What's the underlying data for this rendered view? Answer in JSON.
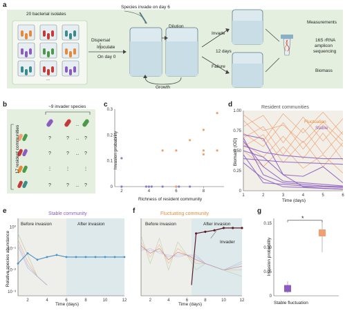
{
  "panel_a": {
    "letter": "a",
    "isolates_label": "20 bacterial isolates",
    "ellipsis": "...",
    "species_invade": "Species invade on day 6",
    "dispersal": "Dispersal",
    "dilution": "Dilution",
    "inoculate": "Inoculate",
    "on_day0": "On day 0",
    "growth": "Growth",
    "invade": "Invade",
    "failure": "Failure",
    "twelve_days": "12 days",
    "measurements": "Measurements",
    "rrna": "16S rRNA",
    "amplicon": "amplicon",
    "sequencing": "sequencing",
    "biomass": "Biomass",
    "colors": {
      "bg": "#e5efe0",
      "orange": "#e58a3a",
      "red": "#c43a36",
      "teal": "#3a8c8c",
      "purple": "#8a5cc0",
      "green": "#4a9a4a"
    }
  },
  "panel_b": {
    "letter": "b",
    "invader_label": "~9 invader species",
    "resident_label": "17 resident communities",
    "q": "?",
    "dots": "...",
    "vdots": "⋮"
  },
  "panel_c": {
    "letter": "c",
    "chart_data": {
      "type": "scatter",
      "xlabel": "Richness of resident community",
      "ylabel": "Invasion probability",
      "xlim": [
        1.5,
        9.5
      ],
      "ylim": [
        0,
        0.3
      ],
      "xticks": [
        "2",
        "4",
        "6",
        "8"
      ],
      "yticks": [
        "0",
        "0.1",
        "0.2",
        "0.3"
      ],
      "series": [
        {
          "color": "#8a7cc8",
          "points": [
            [
              2,
              0.11
            ],
            [
              2,
              0
            ],
            [
              3.8,
              0
            ],
            [
              4,
              0
            ],
            [
              4.2,
              0
            ],
            [
              5,
              0
            ],
            [
              6,
              0
            ],
            [
              6.2,
              0
            ],
            [
              7,
              0
            ]
          ]
        },
        {
          "color": "#f0a070",
          "points": [
            [
              5,
              0.14
            ],
            [
              6,
              0.14
            ],
            [
              6,
              0
            ],
            [
              7,
              0.18
            ],
            [
              8,
              0.14
            ],
            [
              8,
              0.22
            ],
            [
              8,
              0.125
            ],
            [
              9,
              0.285
            ],
            [
              9,
              0.14
            ]
          ]
        }
      ]
    }
  },
  "panel_d": {
    "letter": "d",
    "title": "Resident communities",
    "legend_fluct": "Fluctuation",
    "legend_stable": "Stable",
    "chart_data": {
      "type": "line",
      "xlabel": "Time (days)",
      "ylabel": "Biomass (OD)",
      "xlim": [
        1,
        6
      ],
      "ylim": [
        0,
        1.0
      ],
      "xticks": [
        "1",
        "2",
        "3",
        "4",
        "5",
        "6"
      ],
      "yticks": [
        "0",
        "0.25",
        "0.50",
        "0.75",
        "1.00"
      ],
      "fluct_color": "#f0a070",
      "stable_color": "#8a5cc0",
      "fluctuating": [
        [
          0.88,
          0.62,
          0.96,
          0.72,
          0.98,
          0.7
        ],
        [
          0.8,
          0.94,
          0.6,
          0.92,
          0.62,
          0.9
        ],
        [
          0.72,
          0.55,
          0.85,
          0.52,
          0.82,
          0.55
        ],
        [
          0.66,
          0.8,
          0.45,
          0.78,
          0.46,
          0.74
        ],
        [
          0.6,
          0.42,
          0.68,
          0.4,
          0.72,
          0.38
        ],
        [
          0.55,
          0.7,
          0.35,
          0.62,
          0.3,
          0.6
        ],
        [
          0.5,
          0.3,
          0.55,
          0.28,
          0.45,
          0.22
        ],
        [
          0.95,
          0.75,
          0.82,
          0.6,
          0.86,
          0.62
        ]
      ],
      "stable": [
        [
          0.66,
          0.2,
          0.1,
          0.08,
          0.06,
          0.05
        ],
        [
          0.62,
          0.3,
          0.12,
          0.1,
          0.08,
          0.06
        ],
        [
          0.56,
          0.48,
          0.44,
          0.42,
          0.4,
          0.4
        ],
        [
          0.5,
          0.42,
          0.2,
          0.05,
          0.03,
          0.02
        ],
        [
          0.7,
          0.65,
          0.2,
          0.18,
          0.3,
          0.1
        ],
        [
          0.45,
          0.1,
          0.08,
          0.06,
          0.05,
          0.04
        ],
        [
          0.4,
          0.38,
          0.36,
          0.35,
          0.34,
          0.33
        ],
        [
          0.35,
          0.15,
          0.05,
          0.04,
          0.03,
          0.02
        ]
      ]
    }
  },
  "panel_e": {
    "letter": "e",
    "title": "Stable community",
    "before": "Before invasion",
    "after": "After invasion",
    "chart_data": {
      "type": "line",
      "xlabel": "Time (days)",
      "ylabel": "Relative species abundance",
      "log_y": true,
      "xlim": [
        1,
        12
      ],
      "yticks": [
        "10⁰",
        "10⁻¹",
        "10⁻²",
        "10⁻³"
      ],
      "xticks": [
        "2",
        "4",
        "6",
        "8",
        "10",
        "12"
      ],
      "main_series": {
        "color": "#4a90c8",
        "x": [
          1,
          2,
          3,
          4,
          5,
          6,
          7,
          8,
          9,
          10,
          11,
          12
        ],
        "y": [
          0.02,
          0.06,
          0.03,
          0.04,
          0.05,
          0.04,
          0.04,
          0.04,
          0.04,
          0.04,
          0.04,
          0.04
        ]
      }
    }
  },
  "panel_f": {
    "letter": "f",
    "title": "Fluctuating community",
    "before": "Before invasion",
    "after": "After invasion",
    "invader": "Invader",
    "chart_data": {
      "type": "line",
      "xlabel": "Time (days)",
      "log_y": true,
      "xlim": [
        1,
        12
      ],
      "xticks": [
        "2",
        "4",
        "6",
        "8",
        "10",
        "12"
      ],
      "invader_series": {
        "color": "#5a1a28",
        "x": [
          7,
          8,
          9,
          10,
          11,
          12
        ],
        "y": [
          0.5,
          0.6,
          0.7,
          0.9,
          0.9,
          0.9
        ]
      }
    }
  },
  "panel_g": {
    "letter": "g",
    "chart_data": {
      "type": "bar",
      "ylabel": "Invasion probability",
      "categories": [
        "Stable",
        "fluctuation"
      ],
      "xlabel_text": "Stable fluctuation",
      "values": [
        0.015,
        0.13
      ],
      "errors": [
        [
          0.005,
          0.03
        ],
        [
          0.09,
          0.155
        ]
      ],
      "colors": [
        "#8a5cc0",
        "#f0a070"
      ],
      "ylim": [
        0,
        0.16
      ],
      "yticks": [
        "0",
        "0.05",
        "0.10",
        "0.15"
      ],
      "significance": "*"
    }
  }
}
